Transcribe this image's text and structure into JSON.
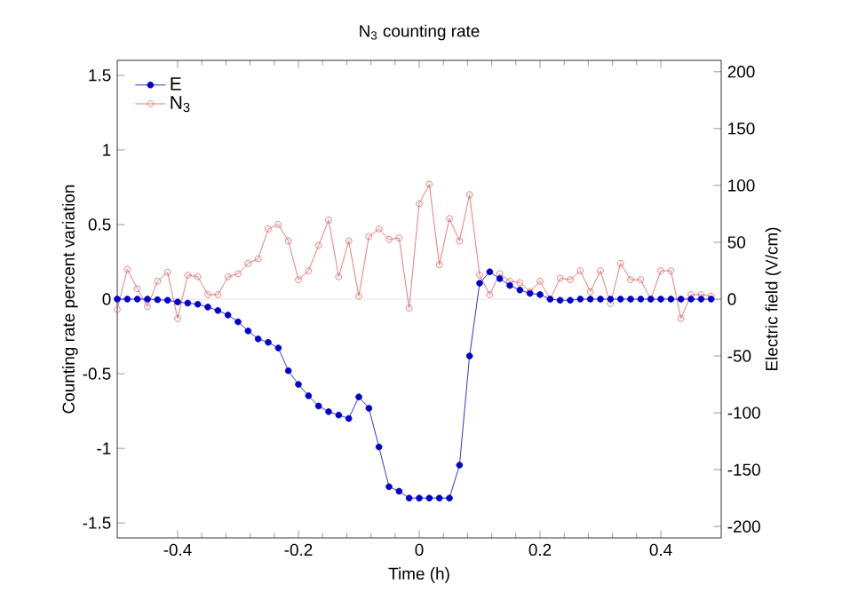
{
  "chart_data": {
    "type": "line",
    "title": "N$_{3}$ counting rate",
    "xlabel": "Time (h)",
    "ylabel": "Counting rate percent variation",
    "y2label": "Electric field (V/cm)",
    "x": [
      -0.5,
      -0.4833,
      -0.4667,
      -0.45,
      -0.4333,
      -0.4167,
      -0.4,
      -0.3833,
      -0.3667,
      -0.35,
      -0.3333,
      -0.3167,
      -0.3,
      -0.2833,
      -0.2667,
      -0.25,
      -0.2333,
      -0.2167,
      -0.2,
      -0.1833,
      -0.1667,
      -0.15,
      -0.1333,
      -0.1167,
      -0.1,
      -0.0833,
      -0.0667,
      -0.05,
      -0.0333,
      -0.0167,
      0,
      0.0167,
      0.0333,
      0.05,
      0.0667,
      0.0833,
      0.1,
      0.1167,
      0.1333,
      0.15,
      0.1667,
      0.1833,
      0.2,
      0.2167,
      0.2333,
      0.25,
      0.2667,
      0.2833,
      0.3,
      0.3167,
      0.3333,
      0.35,
      0.3667,
      0.3833,
      0.4,
      0.4167,
      0.4333,
      0.45,
      0.4667,
      0.4833
    ],
    "series": [
      {
        "name": "E",
        "color": "#0000c8",
        "axis": "y2",
        "values": [
          0,
          0,
          0,
          0,
          -0.5,
          -1,
          -2.5,
          -3.5,
          -4.5,
          -7,
          -10,
          -14,
          -20,
          -28,
          -35,
          -38,
          -43,
          -63,
          -75,
          -85,
          -94,
          -99,
          -102,
          -105,
          -86,
          -96,
          -130,
          -165,
          -169,
          -175,
          -175,
          -175,
          -175,
          -175,
          -146,
          -50,
          14,
          24,
          18,
          12,
          8,
          5,
          4,
          0,
          -1,
          -1,
          0,
          0,
          0,
          0,
          0,
          0,
          0,
          0,
          0,
          0,
          0,
          0,
          0,
          0
        ]
      },
      {
        "name": "N$_{3}$",
        "color": "#e05a5a",
        "axis": "y",
        "values": [
          -0.07,
          0.2,
          0.07,
          -0.05,
          0.12,
          0.18,
          -0.13,
          0.16,
          0.15,
          0.03,
          0.03,
          0.15,
          0.17,
          0.24,
          0.27,
          0.47,
          0.5,
          0.39,
          0.13,
          0.19,
          0.36,
          0.53,
          0.15,
          0.39,
          0.02,
          0.42,
          0.47,
          0.4,
          0.41,
          -0.06,
          0.64,
          0.77,
          0.23,
          0.54,
          0.39,
          0.7,
          0.16,
          0.03,
          0.17,
          0.12,
          0.11,
          0.05,
          0.12,
          0.0,
          0.14,
          0.13,
          0.19,
          0.05,
          0.19,
          -0.03,
          0.24,
          0.13,
          0.13,
          0.0,
          0.19,
          0.19,
          -0.13,
          0.03,
          0.03,
          0.02
        ]
      }
    ],
    "xlim": [
      -0.5,
      0.5
    ],
    "xticks": [
      -0.4,
      -0.2,
      0,
      0.2,
      0.4
    ],
    "ylim": [
      -1.6,
      1.6
    ],
    "yticks": [
      -1.5,
      -1,
      -0.5,
      0,
      0.5,
      1,
      1.5
    ],
    "y2lim": [
      -210,
      210
    ],
    "y2ticks": [
      -200,
      -150,
      -100,
      -50,
      0,
      50,
      100,
      150,
      200
    ],
    "ref_lines": [
      {
        "axis": "y",
        "value": 0,
        "color": "#dddddd"
      }
    ],
    "marker": "circle",
    "line_style": "solid",
    "legend": "top left",
    "grid": false
  }
}
